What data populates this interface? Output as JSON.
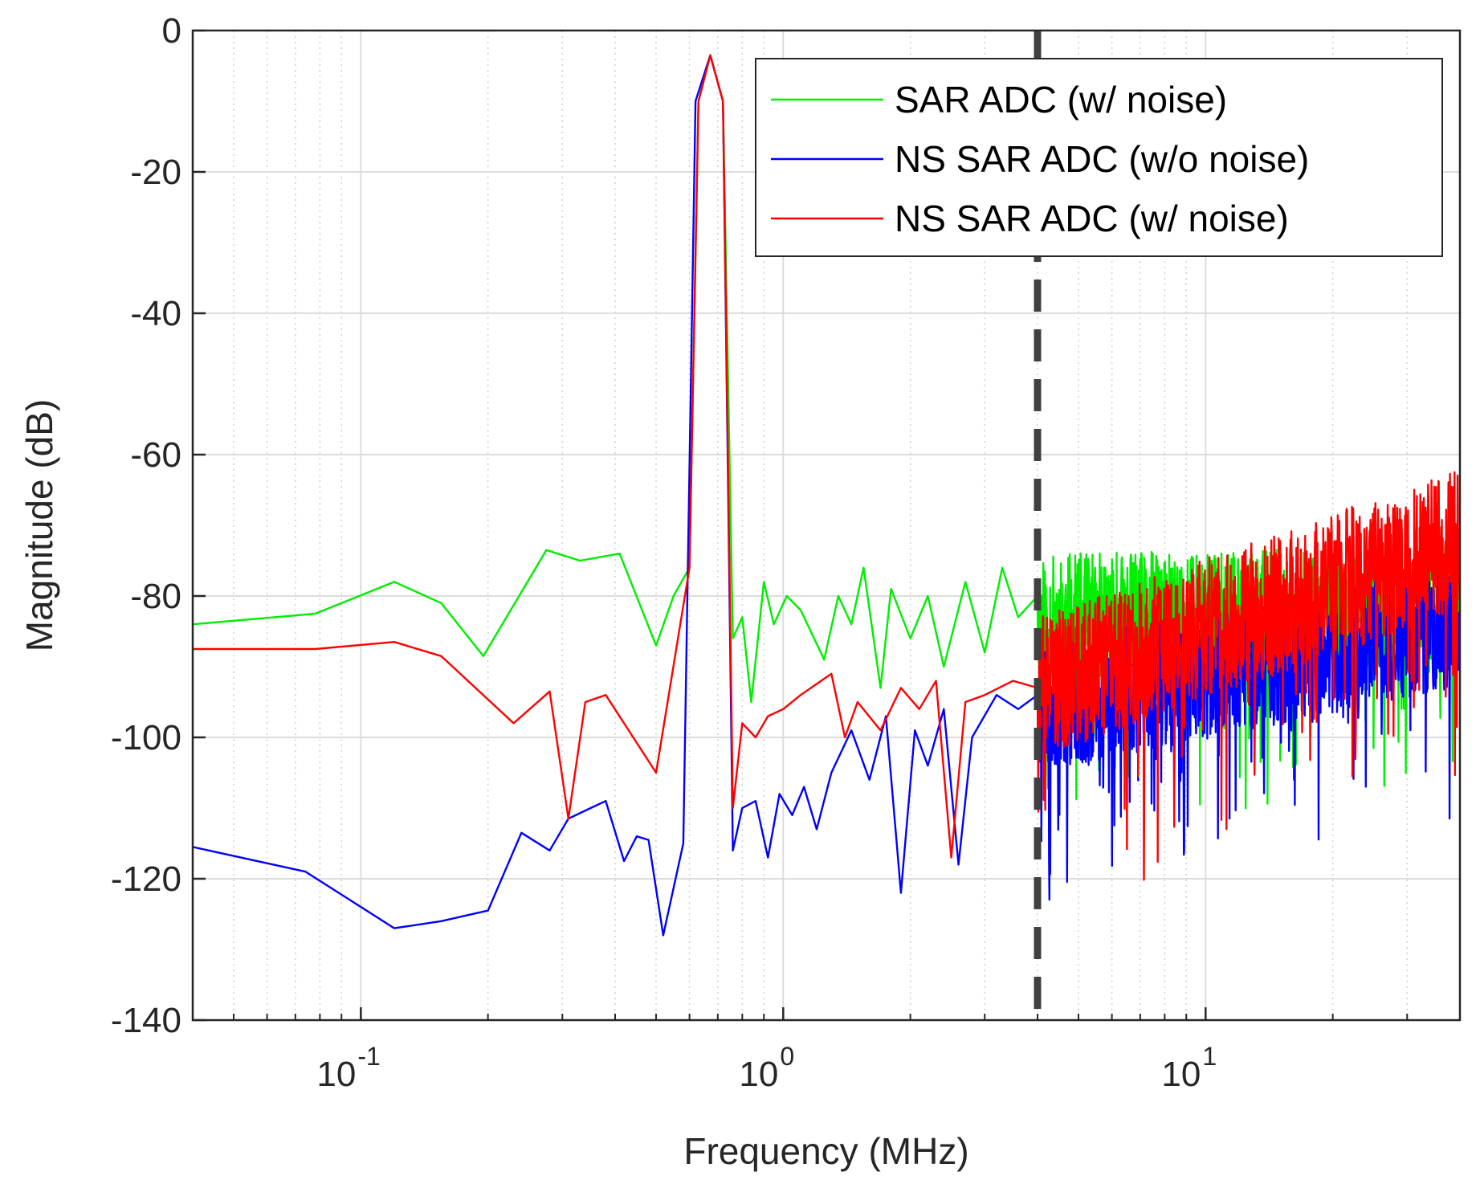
{
  "chart_data": {
    "type": "line",
    "title": "",
    "xlabel": "Frequency (MHz)",
    "ylabel": "Magnitude (dB)",
    "xscale": "log",
    "xlim": [
      0.04,
      40
    ],
    "ylim": [
      -140,
      0
    ],
    "yticks": [
      0,
      -20,
      -40,
      -60,
      -80,
      -100,
      -120,
      -140
    ],
    "ytick_labels": [
      "0",
      "-20",
      "-40",
      "-60",
      "-80",
      "-100",
      "-120",
      "-140"
    ],
    "xticks": [
      {
        "value": 0.1,
        "base": "10",
        "exp": "-1"
      },
      {
        "value": 1,
        "base": "10",
        "exp": "0"
      },
      {
        "value": 10,
        "base": "10",
        "exp": "1"
      }
    ],
    "grid": true,
    "legend_position": "top-right",
    "band_edge_marker": {
      "x": 4.0,
      "style": "dashed",
      "color": "#404040"
    },
    "series": [
      {
        "name": "SAR ADC (w/ noise)",
        "color": "#00ee00",
        "points": [
          [
            0.04,
            -84
          ],
          [
            0.078,
            -82.5
          ],
          [
            0.12,
            -78
          ],
          [
            0.155,
            -81
          ],
          [
            0.195,
            -88.5
          ],
          [
            0.275,
            -73.5
          ],
          [
            0.33,
            -75
          ],
          [
            0.41,
            -74
          ],
          [
            0.5,
            -87
          ],
          [
            0.55,
            -80
          ],
          [
            0.6,
            -76
          ],
          [
            0.63,
            -10
          ],
          [
            0.672,
            -3.5
          ],
          [
            0.72,
            -10
          ],
          [
            0.76,
            -86
          ],
          [
            0.8,
            -83
          ],
          [
            0.84,
            -95
          ],
          [
            0.9,
            -78
          ],
          [
            0.95,
            -84
          ],
          [
            1.02,
            -80
          ],
          [
            1.1,
            -82
          ],
          [
            1.25,
            -89
          ],
          [
            1.35,
            -80
          ],
          [
            1.45,
            -84
          ],
          [
            1.55,
            -76
          ],
          [
            1.7,
            -93
          ],
          [
            1.8,
            -79
          ],
          [
            2.0,
            -86
          ],
          [
            2.2,
            -80
          ],
          [
            2.4,
            -90
          ],
          [
            2.7,
            -78
          ],
          [
            3.0,
            -88
          ],
          [
            3.3,
            -76
          ],
          [
            3.6,
            -83
          ],
          [
            4.0,
            -80
          ]
        ],
        "noise": {
          "from": 4.0,
          "to": 40,
          "start": -83,
          "end": -82,
          "spread": 9,
          "seed": 11
        }
      },
      {
        "name": "NS SAR ADC (w/o noise)",
        "color": "#0000ff",
        "points": [
          [
            0.04,
            -115.5
          ],
          [
            0.074,
            -119
          ],
          [
            0.12,
            -127
          ],
          [
            0.155,
            -126
          ],
          [
            0.2,
            -124.5
          ],
          [
            0.24,
            -113.5
          ],
          [
            0.28,
            -116
          ],
          [
            0.31,
            -111.5
          ],
          [
            0.35,
            -110
          ],
          [
            0.38,
            -109
          ],
          [
            0.42,
            -117.5
          ],
          [
            0.45,
            -114
          ],
          [
            0.48,
            -114.5
          ],
          [
            0.52,
            -128
          ],
          [
            0.58,
            -115
          ],
          [
            0.62,
            -10
          ],
          [
            0.672,
            -3.5
          ],
          [
            0.72,
            -10
          ],
          [
            0.76,
            -116
          ],
          [
            0.8,
            -110
          ],
          [
            0.86,
            -109
          ],
          [
            0.92,
            -117
          ],
          [
            0.98,
            -108
          ],
          [
            1.05,
            -111
          ],
          [
            1.12,
            -107
          ],
          [
            1.2,
            -113
          ],
          [
            1.3,
            -105
          ],
          [
            1.45,
            -99
          ],
          [
            1.6,
            -106
          ],
          [
            1.75,
            -97
          ],
          [
            1.9,
            -122
          ],
          [
            2.05,
            -99
          ],
          [
            2.2,
            -104
          ],
          [
            2.4,
            -96
          ],
          [
            2.6,
            -118
          ],
          [
            2.8,
            -100
          ],
          [
            3.2,
            -94
          ],
          [
            3.6,
            -96
          ],
          [
            4.0,
            -94
          ]
        ],
        "noise": {
          "from": 4.0,
          "to": 40,
          "start": -96,
          "end": -84,
          "spread": 9,
          "seed": 23
        }
      },
      {
        "name": "NS SAR ADC (w/ noise)",
        "color": "#ff0000",
        "points": [
          [
            0.04,
            -87.5
          ],
          [
            0.078,
            -87.5
          ],
          [
            0.12,
            -86.5
          ],
          [
            0.155,
            -88.5
          ],
          [
            0.23,
            -98
          ],
          [
            0.28,
            -93.5
          ],
          [
            0.31,
            -111.5
          ],
          [
            0.34,
            -95
          ],
          [
            0.38,
            -94
          ],
          [
            0.42,
            -98
          ],
          [
            0.5,
            -105
          ],
          [
            0.6,
            -76
          ],
          [
            0.63,
            -10
          ],
          [
            0.672,
            -3.5
          ],
          [
            0.72,
            -10
          ],
          [
            0.76,
            -110
          ],
          [
            0.8,
            -98
          ],
          [
            0.86,
            -100
          ],
          [
            0.92,
            -97
          ],
          [
            1.0,
            -96
          ],
          [
            1.1,
            -94
          ],
          [
            1.3,
            -91
          ],
          [
            1.4,
            -100
          ],
          [
            1.5,
            -95
          ],
          [
            1.7,
            -99
          ],
          [
            1.9,
            -93
          ],
          [
            2.1,
            -96
          ],
          [
            2.3,
            -92
          ],
          [
            2.5,
            -117
          ],
          [
            2.7,
            -95
          ],
          [
            3.0,
            -94
          ],
          [
            3.5,
            -92
          ],
          [
            4.0,
            -93
          ]
        ],
        "noise": {
          "from": 4.0,
          "to": 40,
          "start": -93,
          "end": -72,
          "spread": 10,
          "seed": 37
        }
      }
    ]
  }
}
